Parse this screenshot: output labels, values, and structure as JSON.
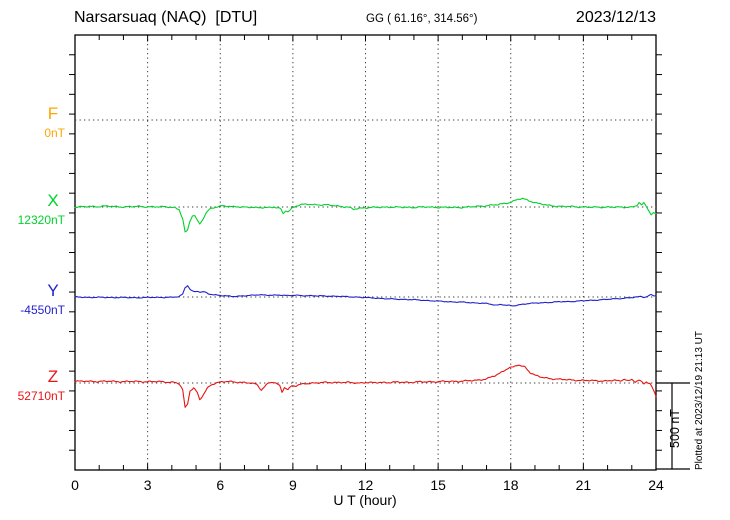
{
  "header": {
    "station_title": "Narsarsuaq (NAQ)  [DTU]",
    "coordinates": "GG ( 61.16°, 314.56°)",
    "date": "2023/12/13"
  },
  "x_axis": {
    "label": "U T (hour)",
    "tick_labels": [
      "0",
      "3",
      "6",
      "9",
      "12",
      "15",
      "18",
      "21",
      "24"
    ],
    "tick_hours": [
      0,
      3,
      6,
      9,
      12,
      15,
      18,
      21,
      24
    ],
    "min": 0,
    "max": 24,
    "minor_step_hours": 1
  },
  "scale_bar": {
    "label": "500 nT",
    "nT": 500
  },
  "plotted_at": "Plotted at 2023/12/19 21:13 UT",
  "colors": {
    "F": "#ffa500",
    "X": "#00d22d",
    "Y": "#2222cc",
    "Z": "#e81313",
    "frame": "#000000",
    "grid": "#3a3a3a"
  },
  "chart_data": {
    "type": "line",
    "title": "Narsarsuaq (NAQ) [DTU] magnetogram 2023/12/13",
    "xlabel": "U T (hour)",
    "x_range": [
      0,
      24
    ],
    "grid": "dotted vertical every 3 h, dotted horizontal at each trace baseline",
    "scale_nT_per_division": 500,
    "point_units": "hour UT, offset in nT from trace baseline",
    "series": [
      {
        "id": "F",
        "label": "F",
        "baseline_label": "0nT",
        "color": "#ffa500",
        "note": "no data plotted",
        "points": []
      },
      {
        "id": "X",
        "label": "X",
        "baseline_label": "12320nT",
        "color": "#00d22d",
        "points": [
          [
            0,
            0
          ],
          [
            0.5,
            2
          ],
          [
            1,
            3
          ],
          [
            1.3,
            6
          ],
          [
            1.6,
            2
          ],
          [
            2,
            1
          ],
          [
            2.5,
            3
          ],
          [
            3,
            2
          ],
          [
            3.5,
            0
          ],
          [
            3.8,
            2
          ],
          [
            4.1,
            -3
          ],
          [
            4.3,
            -15
          ],
          [
            4.45,
            -70
          ],
          [
            4.55,
            -148
          ],
          [
            4.65,
            -135
          ],
          [
            4.75,
            -80
          ],
          [
            4.85,
            -50
          ],
          [
            4.95,
            -48
          ],
          [
            5.05,
            -78
          ],
          [
            5.15,
            -98
          ],
          [
            5.25,
            -80
          ],
          [
            5.4,
            -40
          ],
          [
            5.55,
            -15
          ],
          [
            5.7,
            -5
          ],
          [
            5.9,
            3
          ],
          [
            6.1,
            8
          ],
          [
            6.3,
            4
          ],
          [
            6.5,
            0
          ],
          [
            6.7,
            2
          ],
          [
            7,
            0
          ],
          [
            7.3,
            -2
          ],
          [
            7.5,
            -6
          ],
          [
            7.7,
            -3
          ],
          [
            8,
            -2
          ],
          [
            8.2,
            0
          ],
          [
            8.5,
            -12
          ],
          [
            8.6,
            -40
          ],
          [
            8.7,
            -20
          ],
          [
            8.8,
            -28
          ],
          [
            8.95,
            -8
          ],
          [
            9.1,
            5
          ],
          [
            9.3,
            12
          ],
          [
            9.6,
            16
          ],
          [
            9.9,
            14
          ],
          [
            10.2,
            12
          ],
          [
            10.6,
            10
          ],
          [
            11,
            4
          ],
          [
            11.3,
            -2
          ],
          [
            11.5,
            -14
          ],
          [
            11.7,
            -8
          ],
          [
            12,
            -4
          ],
          [
            12.5,
            -2
          ],
          [
            13,
            0
          ],
          [
            13.5,
            -2
          ],
          [
            14,
            -2
          ],
          [
            14.5,
            0
          ],
          [
            15,
            -2
          ],
          [
            15.5,
            -3
          ],
          [
            16,
            -2
          ],
          [
            16.5,
            2
          ],
          [
            17,
            8
          ],
          [
            17.5,
            14
          ],
          [
            18,
            28
          ],
          [
            18.3,
            45
          ],
          [
            18.5,
            48
          ],
          [
            18.8,
            35
          ],
          [
            19.1,
            22
          ],
          [
            19.5,
            10
          ],
          [
            20,
            4
          ],
          [
            20.5,
            2
          ],
          [
            21,
            0
          ],
          [
            21.5,
            -2
          ],
          [
            22,
            0
          ],
          [
            22.5,
            -2
          ],
          [
            23,
            0
          ],
          [
            23.2,
            8
          ],
          [
            23.3,
            25
          ],
          [
            23.4,
            10
          ],
          [
            23.5,
            22
          ],
          [
            23.6,
            5
          ],
          [
            23.7,
            -20
          ],
          [
            23.8,
            -42
          ],
          [
            23.9,
            -35
          ],
          [
            24,
            -38
          ]
        ]
      },
      {
        "id": "Y",
        "label": "Y",
        "baseline_label": "-4550nT",
        "color": "#2222cc",
        "points": [
          [
            0,
            0
          ],
          [
            0.5,
            -2
          ],
          [
            1,
            -2
          ],
          [
            1.5,
            -3
          ],
          [
            2,
            -3
          ],
          [
            2.5,
            -4
          ],
          [
            3,
            -3
          ],
          [
            3.5,
            -2
          ],
          [
            4,
            -2
          ],
          [
            4.3,
            2
          ],
          [
            4.45,
            18
          ],
          [
            4.55,
            55
          ],
          [
            4.65,
            68
          ],
          [
            4.75,
            45
          ],
          [
            4.9,
            30
          ],
          [
            5.05,
            32
          ],
          [
            5.2,
            28
          ],
          [
            5.35,
            30
          ],
          [
            5.5,
            20
          ],
          [
            5.7,
            14
          ],
          [
            6,
            8
          ],
          [
            6.3,
            6
          ],
          [
            6.6,
            4
          ],
          [
            7,
            6
          ],
          [
            7.3,
            10
          ],
          [
            7.6,
            14
          ],
          [
            7.9,
            10
          ],
          [
            8.2,
            10
          ],
          [
            8.5,
            12
          ],
          [
            8.8,
            8
          ],
          [
            9.1,
            10
          ],
          [
            9.4,
            8
          ],
          [
            9.7,
            8
          ],
          [
            10,
            6
          ],
          [
            10.4,
            6
          ],
          [
            10.8,
            4
          ],
          [
            11.2,
            2
          ],
          [
            11.6,
            0
          ],
          [
            12,
            -4
          ],
          [
            12.4,
            -6
          ],
          [
            12.8,
            -10
          ],
          [
            13.2,
            -12
          ],
          [
            13.6,
            -14
          ],
          [
            14,
            -16
          ],
          [
            14.5,
            -20
          ],
          [
            15,
            -24
          ],
          [
            15.5,
            -28
          ],
          [
            16,
            -30
          ],
          [
            16.5,
            -34
          ],
          [
            16.8,
            -36
          ],
          [
            17.1,
            -40
          ],
          [
            17.4,
            -48
          ],
          [
            17.6,
            -42
          ],
          [
            17.8,
            -48
          ],
          [
            18.1,
            -52
          ],
          [
            18.4,
            -44
          ],
          [
            18.7,
            -38
          ],
          [
            19,
            -36
          ],
          [
            19.5,
            -32
          ],
          [
            20,
            -28
          ],
          [
            20.5,
            -26
          ],
          [
            21,
            -22
          ],
          [
            21.5,
            -18
          ],
          [
            22,
            -14
          ],
          [
            22.3,
            -10
          ],
          [
            22.6,
            -8
          ],
          [
            23,
            -4
          ],
          [
            23.2,
            0
          ],
          [
            23.4,
            4
          ],
          [
            23.5,
            -2
          ],
          [
            23.7,
            6
          ],
          [
            23.8,
            14
          ],
          [
            23.9,
            6
          ],
          [
            24,
            8
          ]
        ]
      },
      {
        "id": "Z",
        "label": "Z",
        "baseline_label": "52710nT",
        "color": "#e81313",
        "points": [
          [
            0,
            10
          ],
          [
            0.5,
            10
          ],
          [
            1,
            9
          ],
          [
            1.5,
            10
          ],
          [
            2,
            8
          ],
          [
            2.5,
            9
          ],
          [
            3,
            8
          ],
          [
            3.5,
            8
          ],
          [
            3.8,
            6
          ],
          [
            4.1,
            4
          ],
          [
            4.3,
            -5
          ],
          [
            4.45,
            -40
          ],
          [
            4.55,
            -145
          ],
          [
            4.65,
            -120
          ],
          [
            4.75,
            -45
          ],
          [
            4.9,
            -28
          ],
          [
            5.05,
            -55
          ],
          [
            5.15,
            -98
          ],
          [
            5.3,
            -70
          ],
          [
            5.45,
            -35
          ],
          [
            5.6,
            -12
          ],
          [
            5.8,
            0
          ],
          [
            6,
            6
          ],
          [
            6.3,
            8
          ],
          [
            6.6,
            6
          ],
          [
            6.9,
            4
          ],
          [
            7.2,
            0
          ],
          [
            7.5,
            -8
          ],
          [
            7.7,
            -40
          ],
          [
            7.85,
            -18
          ],
          [
            8,
            2
          ],
          [
            8.2,
            4
          ],
          [
            8.45,
            -15
          ],
          [
            8.55,
            -52
          ],
          [
            8.65,
            -25
          ],
          [
            8.8,
            -38
          ],
          [
            8.95,
            -15
          ],
          [
            9.1,
            -18
          ],
          [
            9.3,
            -10
          ],
          [
            9.5,
            -4
          ],
          [
            9.8,
            0
          ],
          [
            10.2,
            2
          ],
          [
            10.6,
            3
          ],
          [
            11,
            4
          ],
          [
            11.4,
            2
          ],
          [
            11.7,
            0
          ],
          [
            12,
            3
          ],
          [
            12.3,
            1
          ],
          [
            12.6,
            4
          ],
          [
            13,
            3
          ],
          [
            13.4,
            5
          ],
          [
            13.8,
            4
          ],
          [
            14.2,
            6
          ],
          [
            14.6,
            7
          ],
          [
            15,
            8
          ],
          [
            15.4,
            9
          ],
          [
            15.8,
            10
          ],
          [
            16.2,
            12
          ],
          [
            16.6,
            16
          ],
          [
            17,
            24
          ],
          [
            17.4,
            45
          ],
          [
            17.7,
            70
          ],
          [
            17.9,
            88
          ],
          [
            18.1,
            92
          ],
          [
            18.3,
            105
          ],
          [
            18.45,
            98
          ],
          [
            18.6,
            92
          ],
          [
            18.8,
            62
          ],
          [
            19,
            45
          ],
          [
            19.3,
            32
          ],
          [
            19.6,
            26
          ],
          [
            20,
            22
          ],
          [
            20.4,
            18
          ],
          [
            20.8,
            16
          ],
          [
            21.2,
            14
          ],
          [
            21.6,
            13
          ],
          [
            22,
            12
          ],
          [
            22.3,
            16
          ],
          [
            22.5,
            10
          ],
          [
            22.7,
            25
          ],
          [
            22.85,
            12
          ],
          [
            23,
            20
          ],
          [
            23.15,
            6
          ],
          [
            23.3,
            16
          ],
          [
            23.5,
            -4
          ],
          [
            23.6,
            8
          ],
          [
            23.75,
            -2
          ],
          [
            23.85,
            -28
          ],
          [
            23.95,
            -60
          ],
          [
            24,
            -80
          ]
        ]
      }
    ]
  }
}
